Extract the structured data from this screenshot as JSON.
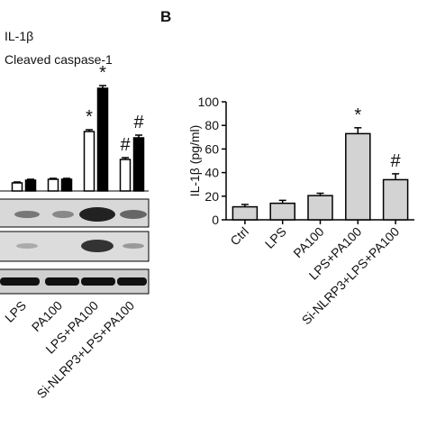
{
  "chart_data": [
    {
      "type": "bar",
      "categories": [
        "LPS",
        "PA100",
        "LPS+PA100",
        "Si-NLRP3+LPS+PA100"
      ],
      "series": [
        {
          "name": "IL-1β",
          "color": "#ffffff",
          "values": [
            9,
            13,
            66,
            35
          ],
          "errors": [
            1,
            1,
            2,
            2
          ],
          "annotations": [
            null,
            null,
            "*",
            "#"
          ]
        },
        {
          "name": "Cleaved caspase-1",
          "color": "#000000",
          "values": [
            12,
            13,
            114,
            59
          ],
          "errors": [
            1,
            1,
            3,
            3
          ],
          "annotations": [
            null,
            null,
            "*",
            "#"
          ]
        }
      ]
    },
    {
      "type": "bar",
      "panel_label": "B",
      "ylabel": "IL-1β (pg/ml)",
      "categories": [
        "Ctrl",
        "LPS",
        "PA100",
        "LPS+PA100",
        "Si-NLRP3+LPS+PA100"
      ],
      "values": [
        11,
        14,
        20.5,
        73,
        34
      ],
      "errors": [
        2,
        2.5,
        2,
        5,
        5
      ],
      "annotations": [
        null,
        null,
        null,
        "*",
        "#"
      ],
      "color": "#d3d3d3",
      "ylim": [
        0,
        100
      ],
      "yticks": [
        0,
        20,
        40,
        60,
        80,
        100
      ]
    }
  ]
}
